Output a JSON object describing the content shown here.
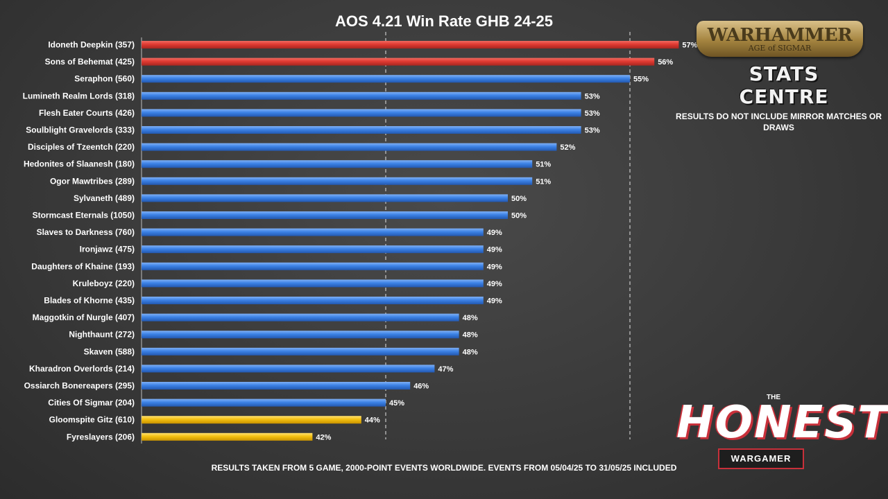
{
  "chart_data": {
    "type": "bar",
    "orientation": "horizontal",
    "title": "AOS 4.21 Win Rate GHB 24-25",
    "categories": [
      "Idoneth Deepkin (357)",
      "Sons of Behemat (425)",
      "Seraphon (560)",
      "Lumineth Realm Lords (318)",
      "Flesh Eater Courts (426)",
      "Soulblight Gravelords (333)",
      "Disciples of Tzeentch (220)",
      "Hedonites of Slaanesh (180)",
      "Ogor Mawtribes (289)",
      "Sylvaneth (489)",
      "Stormcast Eternals (1050)",
      "Slaves to Darkness (760)",
      "Ironjawz (475)",
      "Daughters of Khaine (193)",
      "Kruleboyz (220)",
      "Blades of Khorne (435)",
      "Maggotkin of Nurgle (407)",
      "Nighthaunt (272)",
      "Skaven (588)",
      "Kharadron Overlords (214)",
      "Ossiarch Bonereapers (295)",
      "Cities Of Sigmar (204)",
      "Gloomspite Gitz (610)",
      "Fyreslayers (206)"
    ],
    "values": [
      57,
      56,
      55,
      53,
      53,
      53,
      52,
      51,
      51,
      50,
      50,
      49,
      49,
      49,
      49,
      49,
      48,
      48,
      48,
      47,
      46,
      45,
      44,
      42
    ],
    "value_labels": [
      "57%",
      "56%",
      "55%",
      "53%",
      "53%",
      "53%",
      "52%",
      "51%",
      "51%",
      "50%",
      "50%",
      "49%",
      "49%",
      "49%",
      "49%",
      "49%",
      "48%",
      "48%",
      "48%",
      "47%",
      "46%",
      "45%",
      "44%",
      "42%"
    ],
    "bar_status": [
      "high",
      "high",
      "normal",
      "normal",
      "normal",
      "normal",
      "normal",
      "normal",
      "normal",
      "normal",
      "normal",
      "normal",
      "normal",
      "normal",
      "normal",
      "normal",
      "normal",
      "normal",
      "normal",
      "normal",
      "normal",
      "normal",
      "low",
      "low"
    ],
    "colors": {
      "high": "#e03a32",
      "normal": "#3c82e6",
      "low": "#f4c010"
    },
    "xlim": [
      35,
      60
    ],
    "reference_lines": [
      45,
      55
    ],
    "grid": false,
    "legend": "none"
  },
  "note": "RESULTS DO NOT INCLUDE MIRROR MATCHES OR DRAWS",
  "footer": "RESULTS TAKEN FROM 5 GAME, 2000-POINT EVENTS WORLDWIDE. EVENTS FROM 05/04/25 TO 31/05/25 INCLUDED",
  "logos": {
    "warhammer": {
      "line1": "WARHAMMER",
      "line2": "AGE of SIGMAR",
      "line3": "STATS CENTRE"
    },
    "honest_wargamer": {
      "the": "THE",
      "main": "HONEST",
      "badge": "WARGAMER"
    }
  }
}
